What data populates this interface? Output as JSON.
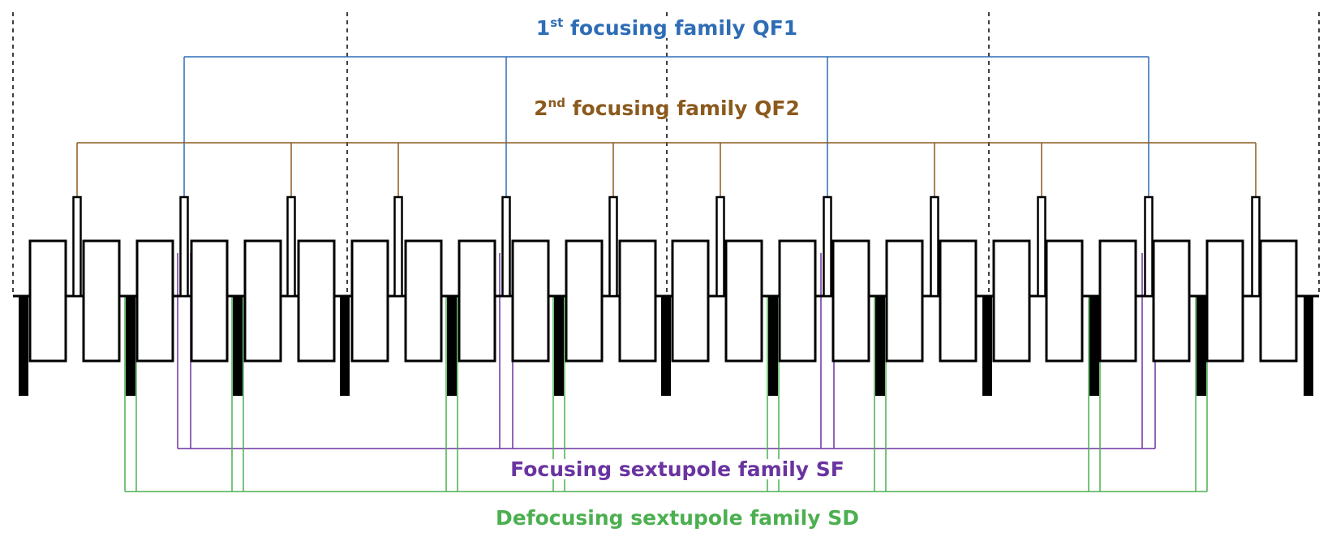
{
  "labels": {
    "qf1": {
      "prefix": "1",
      "sup": "st",
      "text": " focusing family QF1",
      "color": "#2e6db5"
    },
    "qf2": {
      "prefix": "2",
      "sup": "nd",
      "text": " focusing family QF2",
      "color": "#8b5a1e"
    },
    "sf": {
      "text": "Focusing sextupole family SF",
      "color": "#6a34a0"
    },
    "sd": {
      "text": "Defocusing sextupole family SD",
      "color": "#4caf50"
    }
  },
  "colors": {
    "magnet_outline": "#000000",
    "defocusing_quad_fill": "#000000",
    "cell_boundary": "#000000"
  }
}
